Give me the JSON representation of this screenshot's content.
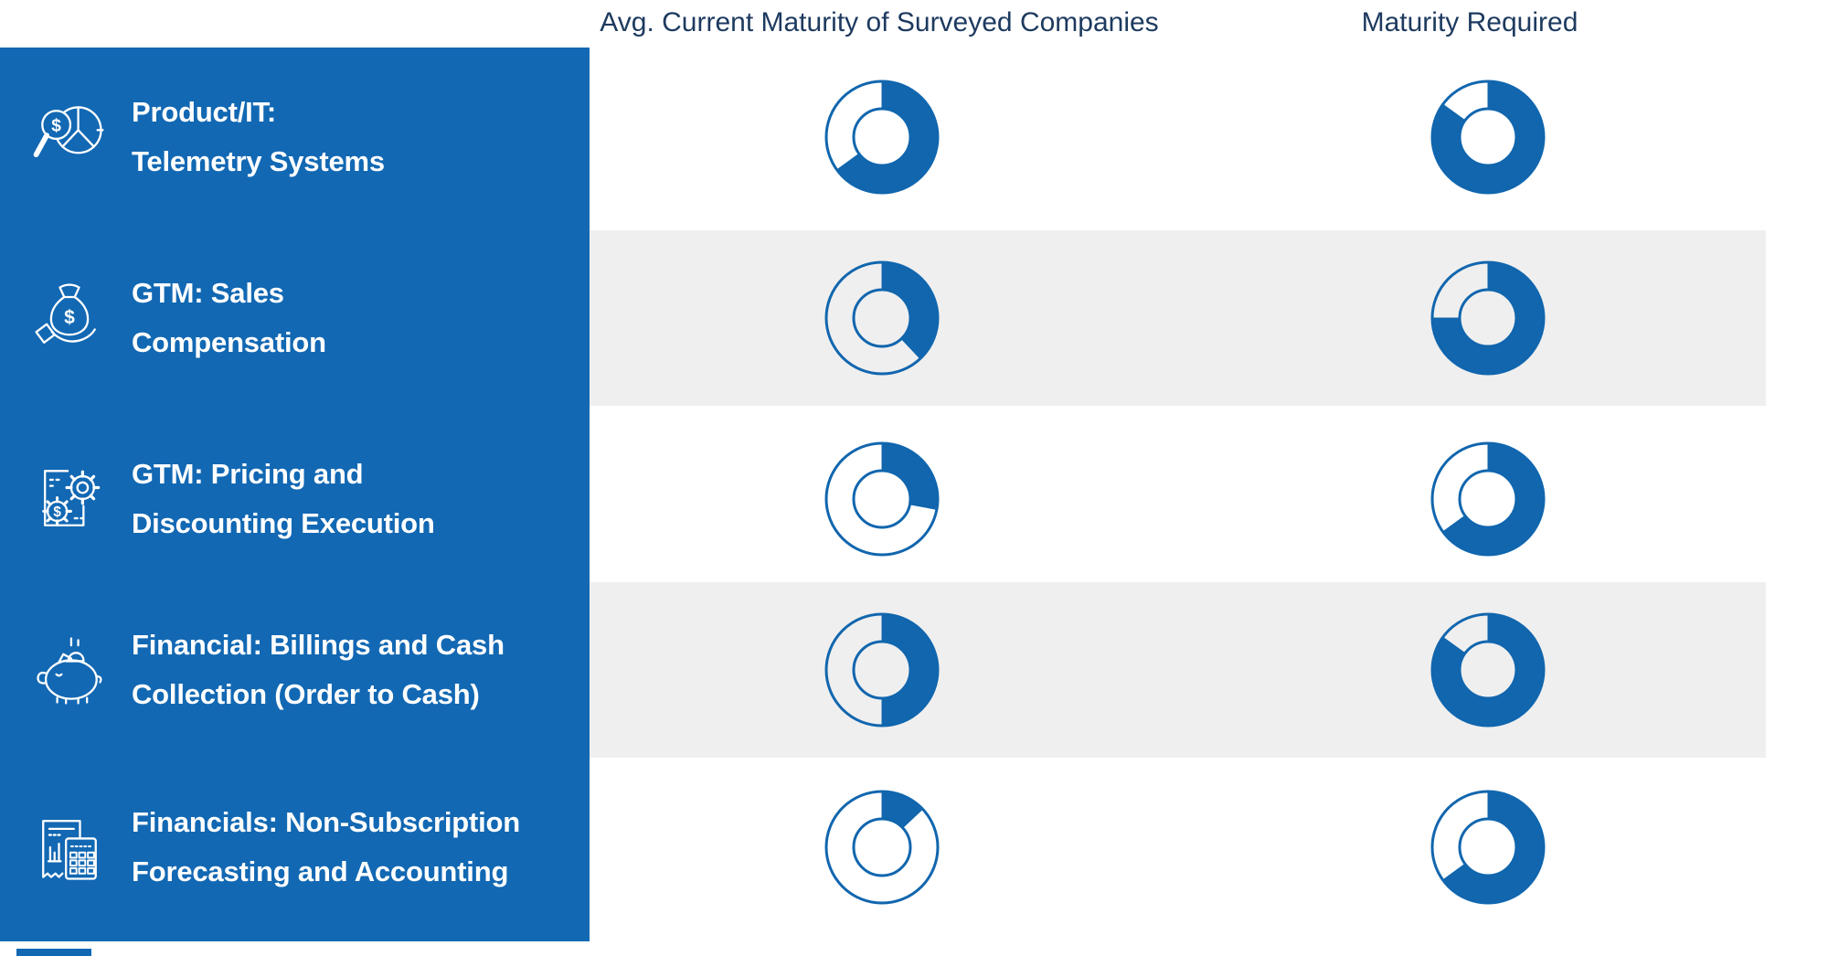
{
  "header": {
    "current": "Avg. Current Maturity of Surveyed Companies",
    "required": "Maturity Required"
  },
  "colors": {
    "sidebar_blue": "#1268b3",
    "donut_blue": "#1166ae",
    "header_navy": "#1d3a5f",
    "stripe_gray": "#efefef",
    "sidebar_text": "#ffffff"
  },
  "chart_data": {
    "type": "donut-matrix",
    "columns": [
      "Avg. Current Maturity of Surveyed Companies",
      "Maturity Required"
    ],
    "value_encoding": "approx percent of ring filled, clockwise from top",
    "legend_position": "none",
    "rows": [
      {
        "category": "Product/IT: Telemetry Systems",
        "label_lines": [
          "Product/IT:",
          "Telemetry Systems"
        ],
        "icon": "magnifier-dollar-pie-icon",
        "current_pct": 65,
        "required_pct": 85
      },
      {
        "category": "GTM: Sales Compensation",
        "label_lines": [
          "GTM: Sales",
          "Compensation"
        ],
        "icon": "hand-money-bag-icon",
        "current_pct": 38,
        "required_pct": 75
      },
      {
        "category": "GTM: Pricing and Discounting Execution",
        "label_lines": [
          "GTM: Pricing and",
          "Discounting Execution"
        ],
        "icon": "document-gears-dollar-icon",
        "current_pct": 28,
        "required_pct": 65
      },
      {
        "category": "Financial: Billings and Cash Collection (Order to Cash)",
        "label_lines": [
          "Financial: Billings and Cash",
          "Collection (Order to Cash)"
        ],
        "icon": "piggy-bank-icon",
        "current_pct": 50,
        "required_pct": 85
      },
      {
        "category": "Financials: Non-Subscription Forecasting and Accounting",
        "label_lines": [
          "Financials: Non-Subscription",
          "Forecasting and Accounting"
        ],
        "icon": "receipt-calculator-icon",
        "current_pct": 13,
        "required_pct": 65
      }
    ]
  }
}
